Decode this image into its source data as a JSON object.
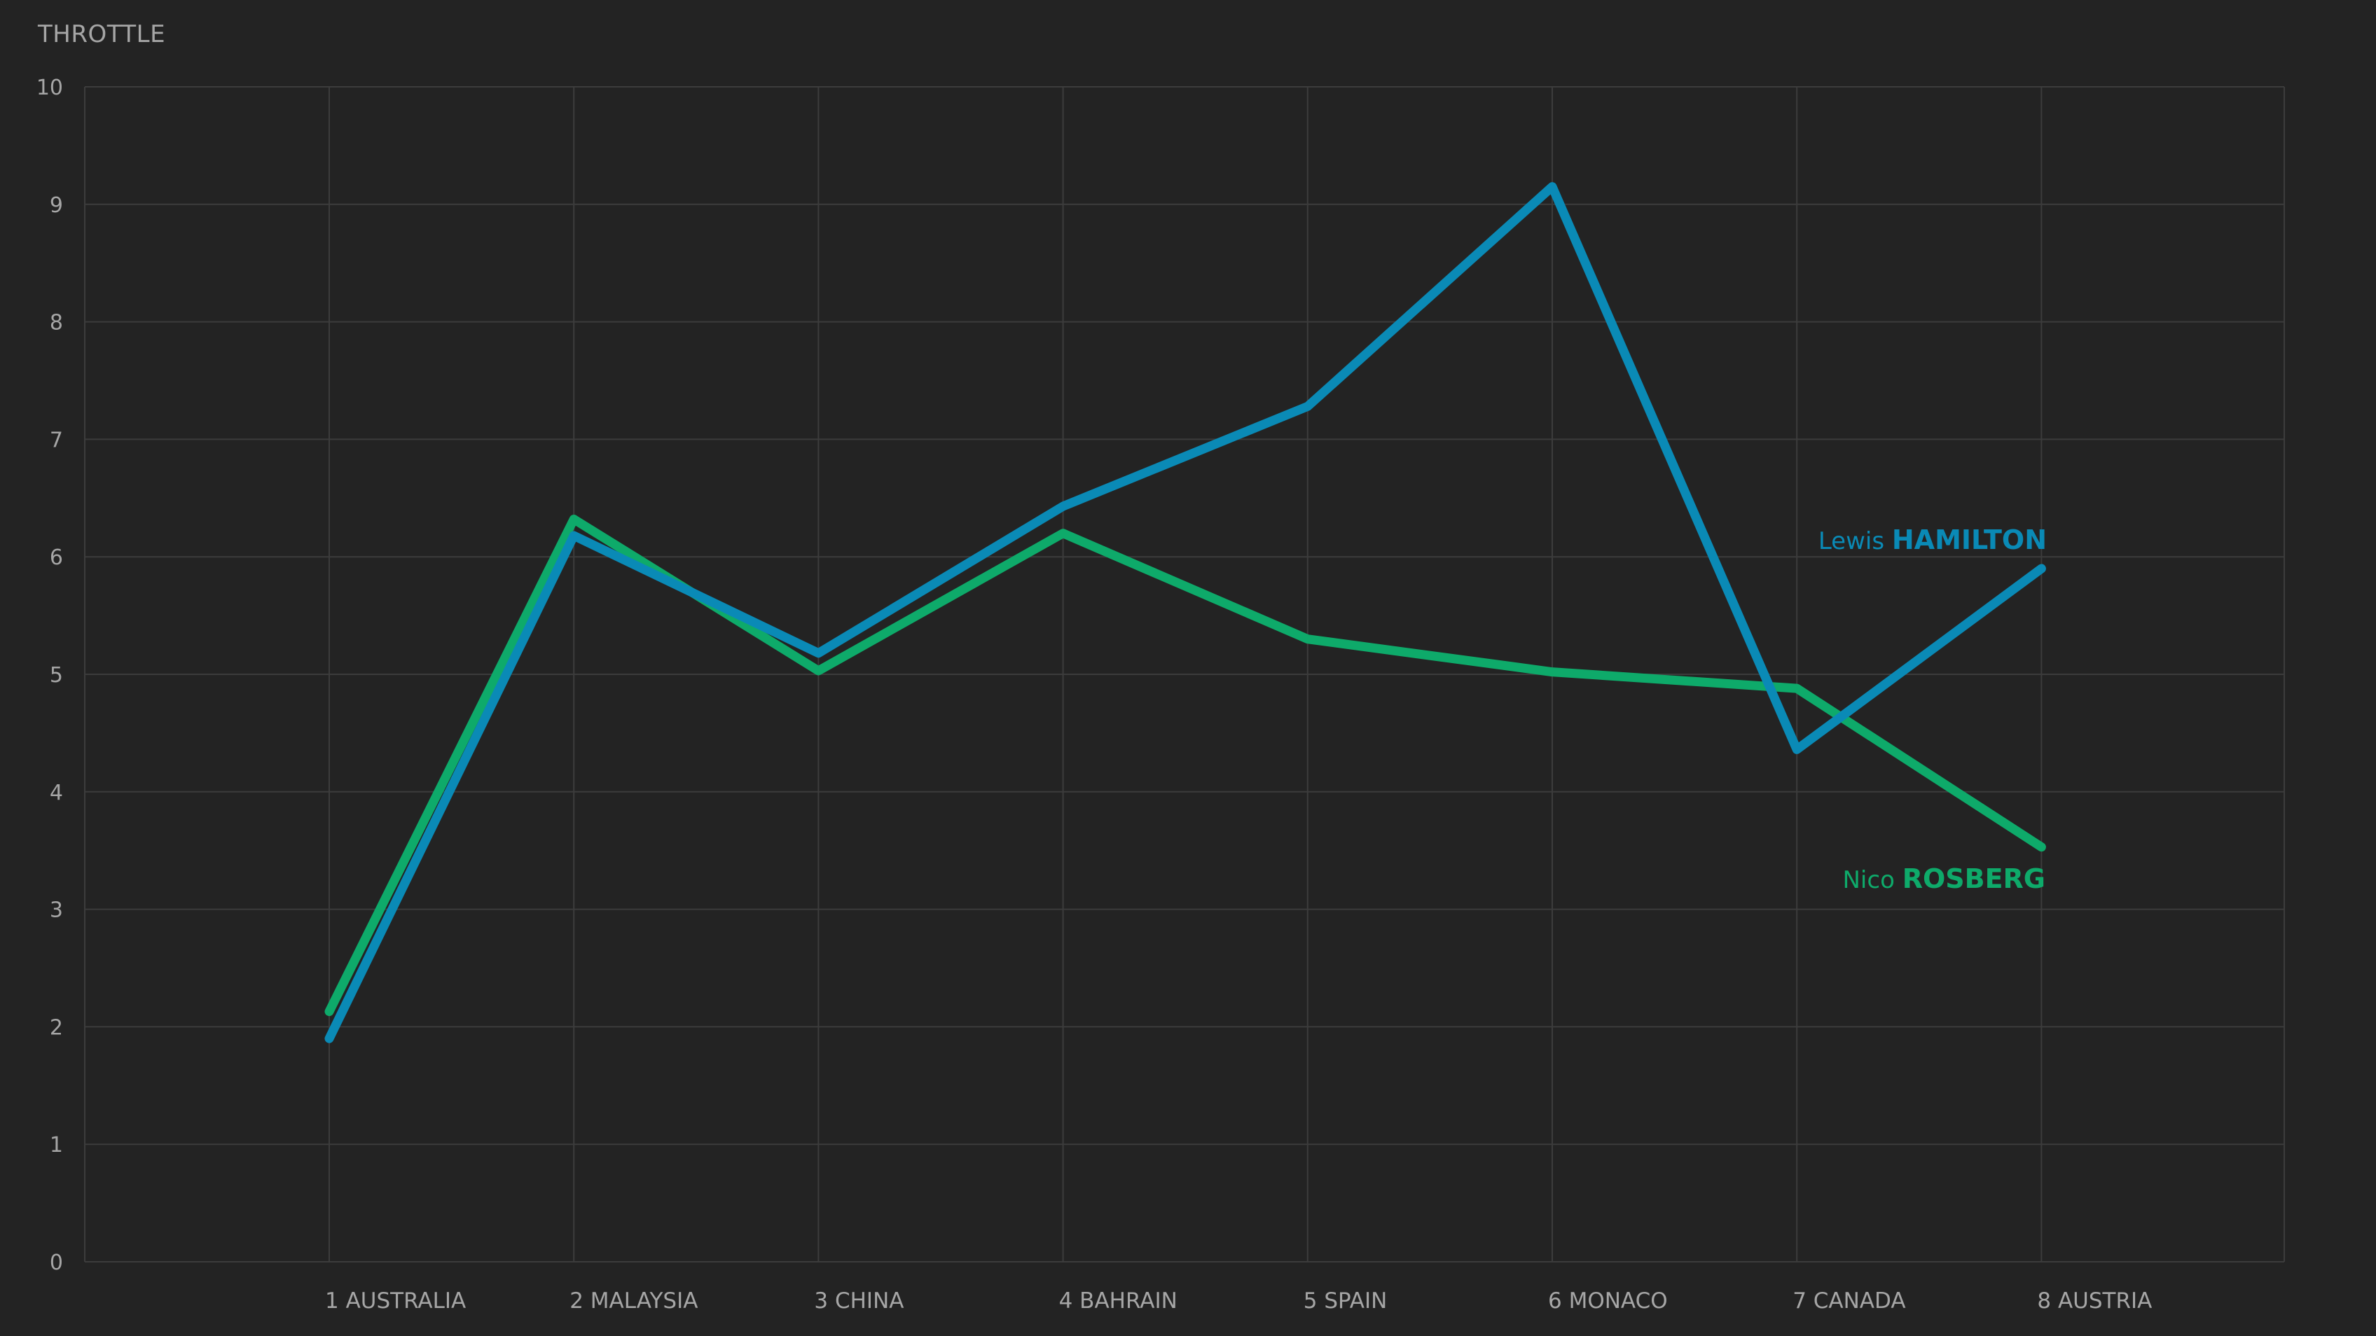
{
  "colors": {
    "background": "#232323",
    "grid": "#3c3c3c",
    "text": "#a6a6a6",
    "hamilton": "#0a8ab6",
    "rosberg": "#0eaa6a"
  },
  "chart_data": {
    "type": "line",
    "title": "",
    "ylabel": "THROTTLE",
    "xlabel": "",
    "ylim": [
      0,
      10
    ],
    "y_ticks": [
      "0",
      "1",
      "2",
      "3",
      "4",
      "5",
      "6",
      "7",
      "8",
      "9",
      "10"
    ],
    "categories": [
      "1 AUSTRALIA",
      "2 MALAYSIA",
      "3 CHINA",
      "4 BAHRAIN",
      "5 SPAIN",
      "6 MONACO",
      "7 CANADA",
      "8 AUSTRIA"
    ],
    "grid": true,
    "legend": "inline labels at line ends (right)",
    "series": [
      {
        "name": "Lewis HAMILTON",
        "first": "Lewis",
        "last": "HAMILTON",
        "color": "#0a8ab6",
        "values": [
          1.9,
          6.18,
          5.18,
          6.43,
          7.28,
          9.15,
          4.36,
          5.9
        ]
      },
      {
        "name": "Nico ROSBERG",
        "first": "Nico",
        "last": "ROSBERG",
        "color": "#0eaa6a",
        "values": [
          2.13,
          6.32,
          5.03,
          6.2,
          5.3,
          5.02,
          4.88,
          3.53
        ]
      }
    ]
  }
}
